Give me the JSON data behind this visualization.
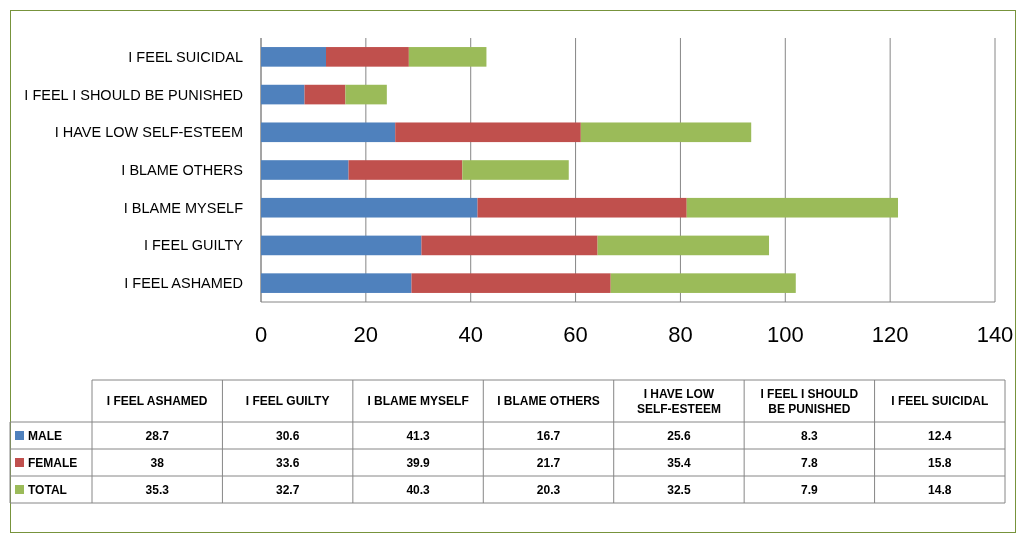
{
  "chart_data": [
    {
      "type": "bar",
      "orientation": "horizontal",
      "stacked": true,
      "categories": [
        "I FEEL SUICIDAL",
        "I FEEL I SHOULD BE PUNISHED",
        "I HAVE LOW SELF-ESTEEM",
        "I BLAME OTHERS",
        "I BLAME MYSELF",
        "I FEEL GUILTY",
        "I FEEL ASHAMED"
      ],
      "series": [
        {
          "color": "#4f81bd",
          "values": [
            12.4,
            8.3,
            25.6,
            16.7,
            41.3,
            30.6,
            28.7
          ]
        },
        {
          "color": "#c0504d",
          "values": [
            15.8,
            7.8,
            35.4,
            21.7,
            39.9,
            33.6,
            38
          ]
        },
        {
          "color": "#9bbb59",
          "values": [
            14.8,
            7.9,
            32.5,
            20.3,
            40.3,
            32.7,
            35.3
          ]
        }
      ],
      "xlim": [
        0,
        140
      ],
      "xticks": [
        0,
        20,
        40,
        60,
        80,
        100,
        120,
        140
      ],
      "grid": "x"
    },
    {
      "type": "other",
      "categories": [
        "I FEEL ASHAMED",
        "I FEEL GUILTY",
        "I BLAME MYSELF",
        "I BLAME OTHERS",
        "I HAVE LOW SELF-ESTEEM",
        "I FEEL I SHOULD BE PUNISHED",
        "I FEEL SUICIDAL"
      ],
      "series": [
        {
          "name": "MALE",
          "color": "#4f81bd",
          "values": [
            28.7,
            30.6,
            41.3,
            16.7,
            25.6,
            8.3,
            12.4
          ]
        },
        {
          "name": "FEMALE",
          "color": "#c0504d",
          "values": [
            38,
            33.6,
            39.9,
            21.7,
            35.4,
            7.8,
            15.8
          ]
        },
        {
          "name": "TOTAL",
          "color": "#9bbb59",
          "values": [
            35.3,
            32.7,
            40.3,
            20.3,
            32.5,
            7.9,
            14.8
          ]
        }
      ],
      "legend": "left",
      "data_labels": true
    }
  ]
}
